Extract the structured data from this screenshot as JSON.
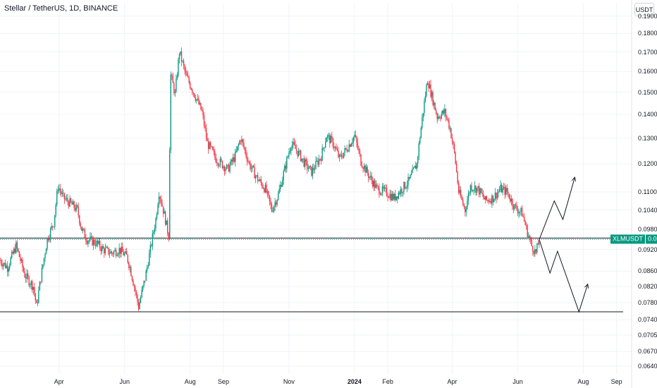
{
  "header": {
    "title": "Stellar / TetherUS, 1D, BINANCE",
    "unit": "USDT"
  },
  "chart_data": {
    "type": "candlestick",
    "title": "Stellar / TetherUS, 1D, BINANCE",
    "xlabel": "",
    "ylabel": "USDT",
    "y_scale": "log",
    "y_ticks": [
      "0.1900",
      "0.1800",
      "0.1700",
      "0.1600",
      "0.1500",
      "0.1400",
      "0.1300",
      "0.1200",
      "0.1100",
      "0.1040",
      "0.0980",
      "0.0920",
      "0.0860",
      "0.0820",
      "0.0780",
      "0.0740",
      "0.0705",
      "0.0670",
      "0.0640"
    ],
    "x_ticks": [
      {
        "label": "Apr",
        "date": "2023-04-01"
      },
      {
        "label": "Jun",
        "date": "2023-06-01"
      },
      {
        "label": "Aug",
        "date": "2023-08-01"
      },
      {
        "label": "Sep",
        "date": "2023-09-01"
      },
      {
        "label": "Nov",
        "date": "2023-11-01"
      },
      {
        "label": "2024",
        "date": "2024-01-01",
        "bold": true
      },
      {
        "label": "Feb",
        "date": "2024-02-01"
      },
      {
        "label": "Apr",
        "date": "2024-04-01"
      },
      {
        "label": "Jun",
        "date": "2024-06-01"
      },
      {
        "label": "Aug",
        "date": "2024-08-01"
      },
      {
        "label": "Sep",
        "date": "2024-09-01"
      }
    ],
    "x_range": [
      "2023-02-05",
      "2024-09-15"
    ],
    "y_range": [
      0.0625,
      0.198
    ],
    "last_price": {
      "symbol": "XLMUSDT",
      "value": "0.0949"
    },
    "horizontal_levels": [
      0.0953,
      0.0758
    ],
    "price_path": [
      [
        "2023-02-05",
        0.089
      ],
      [
        "2023-02-12",
        0.087
      ],
      [
        "2023-02-20",
        0.093
      ],
      [
        "2023-02-28",
        0.085
      ],
      [
        "2023-03-08",
        0.082
      ],
      [
        "2023-03-11",
        0.077
      ],
      [
        "2023-03-16",
        0.086
      ],
      [
        "2023-03-21",
        0.095
      ],
      [
        "2023-03-27",
        0.1
      ],
      [
        "2023-03-31",
        0.112
      ],
      [
        "2023-04-05",
        0.108
      ],
      [
        "2023-04-12",
        0.106
      ],
      [
        "2023-04-18",
        0.104
      ],
      [
        "2023-04-22",
        0.098
      ],
      [
        "2023-04-27",
        0.095
      ],
      [
        "2023-05-05",
        0.094
      ],
      [
        "2023-05-12",
        0.092
      ],
      [
        "2023-05-20",
        0.091
      ],
      [
        "2023-05-27",
        0.092
      ],
      [
        "2023-06-03",
        0.09
      ],
      [
        "2023-06-06",
        0.087
      ],
      [
        "2023-06-10",
        0.082
      ],
      [
        "2023-06-14",
        0.077
      ],
      [
        "2023-06-20",
        0.084
      ],
      [
        "2023-06-25",
        0.092
      ],
      [
        "2023-06-30",
        0.101
      ],
      [
        "2023-07-03",
        0.11
      ],
      [
        "2023-07-07",
        0.104
      ],
      [
        "2023-07-12",
        0.096
      ],
      [
        "2023-07-14",
        0.158
      ],
      [
        "2023-07-18",
        0.149
      ],
      [
        "2023-07-22",
        0.17
      ],
      [
        "2023-07-28",
        0.158
      ],
      [
        "2023-08-05",
        0.149
      ],
      [
        "2023-08-12",
        0.141
      ],
      [
        "2023-08-17",
        0.128
      ],
      [
        "2023-08-25",
        0.122
      ],
      [
        "2023-09-05",
        0.118
      ],
      [
        "2023-09-12",
        0.123
      ],
      [
        "2023-09-17",
        0.13
      ],
      [
        "2023-09-25",
        0.12
      ],
      [
        "2023-10-02",
        0.115
      ],
      [
        "2023-10-10",
        0.111
      ],
      [
        "2023-10-16",
        0.104
      ],
      [
        "2023-10-22",
        0.109
      ],
      [
        "2023-10-28",
        0.118
      ],
      [
        "2023-11-03",
        0.128
      ],
      [
        "2023-11-10",
        0.124
      ],
      [
        "2023-11-16",
        0.12
      ],
      [
        "2023-11-22",
        0.117
      ],
      [
        "2023-12-01",
        0.123
      ],
      [
        "2023-12-06",
        0.131
      ],
      [
        "2023-12-12",
        0.128
      ],
      [
        "2023-12-18",
        0.122
      ],
      [
        "2023-12-25",
        0.126
      ],
      [
        "2024-01-01",
        0.131
      ],
      [
        "2024-01-07",
        0.121
      ],
      [
        "2024-01-14",
        0.116
      ],
      [
        "2024-01-22",
        0.111
      ],
      [
        "2024-01-30",
        0.11
      ],
      [
        "2024-02-07",
        0.108
      ],
      [
        "2024-02-14",
        0.111
      ],
      [
        "2024-02-21",
        0.114
      ],
      [
        "2024-02-28",
        0.12
      ],
      [
        "2024-03-04",
        0.138
      ],
      [
        "2024-03-09",
        0.156
      ],
      [
        "2024-03-12",
        0.15
      ],
      [
        "2024-03-18",
        0.139
      ],
      [
        "2024-03-25",
        0.141
      ],
      [
        "2024-03-30",
        0.134
      ],
      [
        "2024-04-03",
        0.124
      ],
      [
        "2024-04-07",
        0.11
      ],
      [
        "2024-04-13",
        0.104
      ],
      [
        "2024-04-18",
        0.112
      ],
      [
        "2024-04-25",
        0.111
      ],
      [
        "2024-05-02",
        0.107
      ],
      [
        "2024-05-09",
        0.108
      ],
      [
        "2024-05-16",
        0.111
      ],
      [
        "2024-05-22",
        0.11
      ],
      [
        "2024-05-29",
        0.105
      ],
      [
        "2024-06-05",
        0.103
      ],
      [
        "2024-06-10",
        0.097
      ],
      [
        "2024-06-14",
        0.093
      ],
      [
        "2024-06-18",
        0.091
      ],
      [
        "2024-06-21",
        0.0949
      ]
    ],
    "projection_up": [
      [
        "2024-06-21",
        0.0949
      ],
      [
        "2024-07-05",
        0.107
      ],
      [
        "2024-07-13",
        0.101
      ],
      [
        "2024-07-24",
        0.115
      ]
    ],
    "projection_down": [
      [
        "2024-06-21",
        0.0949
      ],
      [
        "2024-07-01",
        0.0855
      ],
      [
        "2024-07-08",
        0.0915
      ],
      [
        "2024-07-28",
        0.0758
      ],
      [
        "2024-08-05",
        0.0825
      ]
    ]
  },
  "colors": {
    "up": "#089981",
    "down": "#f23645",
    "grid": "#f0f3fa",
    "axis_text": "#131722",
    "level_line": "#131722",
    "projection": "#131722"
  }
}
